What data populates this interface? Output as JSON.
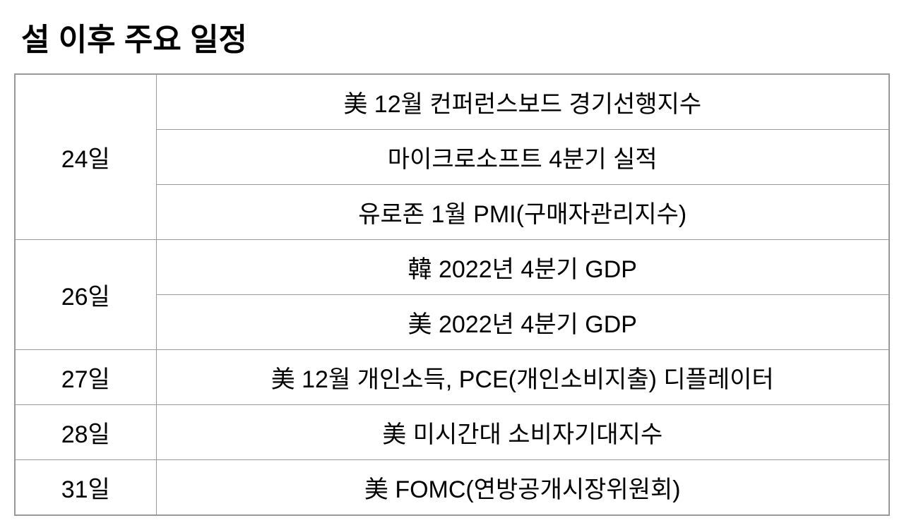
{
  "title": "설 이후 주요 일정",
  "table": {
    "columns": [
      "date",
      "event"
    ],
    "date_col_width": 200,
    "border_color": "#999999",
    "font_size": 34,
    "rows": [
      {
        "date": "24일",
        "events": [
          "美 12월 컨퍼런스보드 경기선행지수",
          "마이크로소프트 4분기 실적",
          "유로존 1월 PMI(구매자관리지수)"
        ]
      },
      {
        "date": "26일",
        "events": [
          "韓 2022년 4분기 GDP",
          "美 2022년 4분기 GDP"
        ]
      },
      {
        "date": "27일",
        "events": [
          "美 12월 개인소득, PCE(개인소비지출) 디플레이터"
        ]
      },
      {
        "date": "28일",
        "events": [
          "美 미시간대 소비자기대지수"
        ]
      },
      {
        "date": "31일",
        "events": [
          "美 FOMC(연방공개시장위원회)"
        ]
      }
    ]
  },
  "styling": {
    "background_color": "#ffffff",
    "title_color": "#000000",
    "title_fontsize": 44,
    "title_fontweight": 700,
    "cell_text_color": "#000000"
  }
}
